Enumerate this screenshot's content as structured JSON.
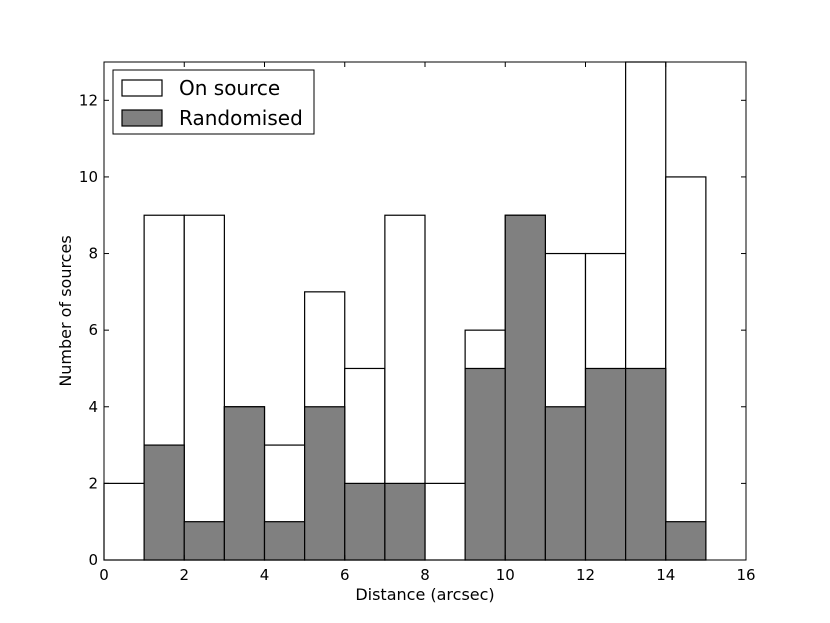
{
  "chart_data": {
    "type": "bar",
    "xlabel": "Distance (arcsec)",
    "ylabel": "Number of sources",
    "xlim": [
      0,
      16
    ],
    "ylim": [
      0,
      13
    ],
    "xticks": [
      "0",
      "2",
      "4",
      "6",
      "8",
      "10",
      "12",
      "14",
      "16"
    ],
    "yticks": [
      "0",
      "2",
      "4",
      "6",
      "8",
      "10",
      "12"
    ],
    "bin_edges": [
      0,
      1,
      2,
      3,
      4,
      5,
      6,
      7,
      8,
      9,
      10,
      11,
      12,
      13,
      14,
      15
    ],
    "series": [
      {
        "name": "On source",
        "color": "#ffffff",
        "values": [
          2,
          9,
          9,
          4,
          3,
          7,
          5,
          9,
          2,
          6,
          9,
          8,
          8,
          13,
          10
        ]
      },
      {
        "name": "Randomised",
        "color": "#808080",
        "values": [
          0,
          3,
          1,
          4,
          1,
          4,
          2,
          2,
          0,
          5,
          9,
          4,
          5,
          5,
          1
        ]
      }
    ],
    "legend_position": "top-left",
    "grid": false
  }
}
